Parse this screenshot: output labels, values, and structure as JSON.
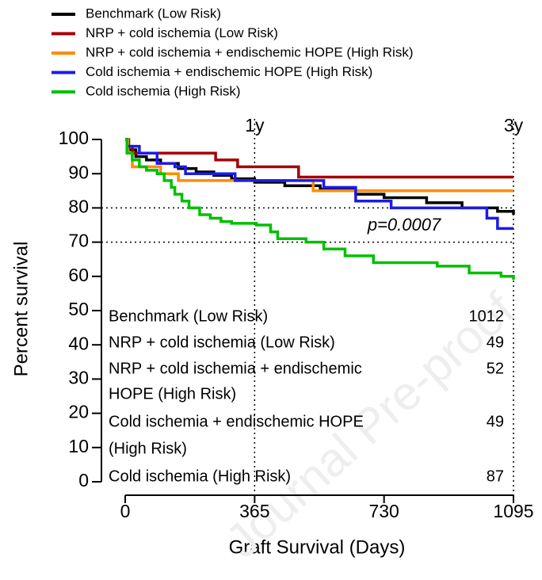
{
  "chart_data": {
    "type": "step",
    "x_label": "Graft Survival (Days)",
    "y_label": "Percent survival",
    "xlim": [
      0,
      1095
    ],
    "xticks": [
      0,
      365,
      730,
      1095
    ],
    "ylim": [
      0,
      100
    ],
    "yticks": [
      0,
      10,
      20,
      30,
      40,
      50,
      60,
      70,
      80,
      90,
      100
    ],
    "markers": [
      {
        "x": 365,
        "label": "1y"
      },
      {
        "x": 1095,
        "label": "3y"
      }
    ],
    "hlines": [
      80,
      70
    ],
    "annotation": "p=0.0007",
    "watermark": "Journal Pre-proof",
    "series": [
      {
        "name": "Benchmark (Low Risk)",
        "color": "#000000",
        "x": [
          0,
          10,
          30,
          60,
          100,
          150,
          200,
          250,
          300,
          365,
          450,
          550,
          650,
          730,
          850,
          950,
          1050,
          1095
        ],
        "values": [
          100,
          97,
          95,
          94,
          93,
          91.5,
          90.5,
          89.5,
          88.5,
          87.5,
          86.5,
          85.5,
          84,
          83,
          81.5,
          80,
          79,
          78
        ]
      },
      {
        "name": "NRP + cold ischemia (Low Risk)",
        "color": "#a50000",
        "x": [
          0,
          5,
          20,
          255,
          317,
          489,
          1095
        ],
        "values": [
          100,
          98,
          96,
          94,
          92,
          89,
          89
        ]
      },
      {
        "name": "NRP + cold ischemia + endischemic HOPE (High Risk)",
        "color": "#ff8c00",
        "x": [
          0,
          8,
          20,
          100,
          150,
          530,
          1095
        ],
        "values": [
          100,
          96,
          92,
          90,
          88,
          85,
          85
        ]
      },
      {
        "name": "Cold ischemia + endischemic HOPE (High Risk)",
        "color": "#1c1ce6",
        "x": [
          0,
          5,
          40,
          90,
          140,
          170,
          310,
          560,
          650,
          750,
          1020,
          1050,
          1095
        ],
        "values": [
          100,
          98,
          96,
          93,
          92,
          90,
          88,
          86,
          82,
          80,
          77,
          74,
          74
        ]
      },
      {
        "name": "Cold ischemia (High Risk)",
        "color": "#00c000",
        "x": [
          0,
          5,
          20,
          40,
          60,
          90,
          110,
          130,
          140,
          160,
          180,
          210,
          240,
          270,
          300,
          370,
          410,
          430,
          510,
          560,
          620,
          700,
          880,
          970,
          1060,
          1095
        ],
        "values": [
          100,
          96,
          94,
          92,
          91,
          90,
          88,
          86,
          84,
          82,
          80,
          78,
          77,
          76,
          75.5,
          75,
          73,
          71,
          70,
          68,
          66,
          64,
          63,
          61,
          60,
          59
        ]
      }
    ],
    "risk_table": {
      "labels": [
        [
          "Benchmark (Low Risk)"
        ],
        [
          "NRP + cold ischemia (Low Risk)"
        ],
        [
          "NRP + cold ischemia + endischemic",
          "HOPE (High Risk)"
        ],
        [
          "Cold ischemia + endischemic HOPE",
          "(High Risk)"
        ],
        [
          "Cold ischemia (High Risk)"
        ]
      ],
      "counts": [
        1012,
        49,
        52,
        49,
        87
      ]
    }
  }
}
